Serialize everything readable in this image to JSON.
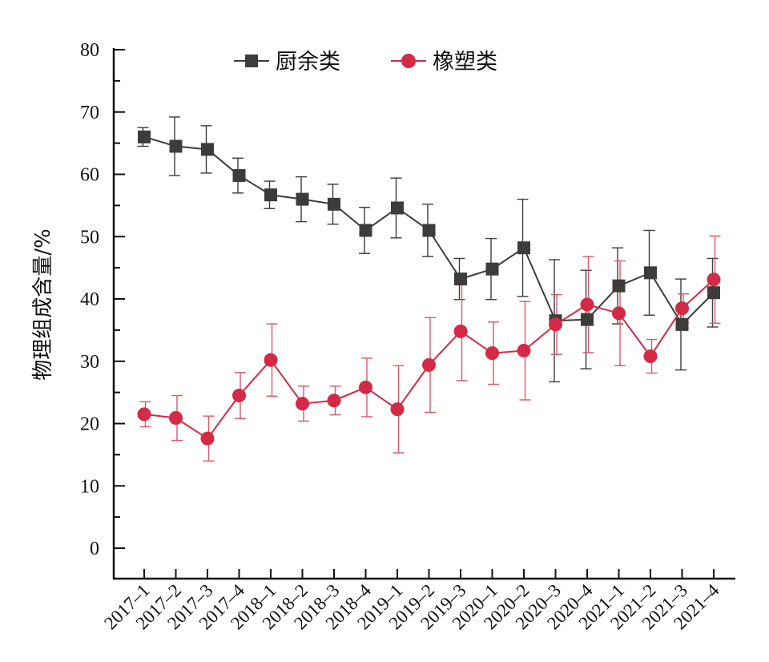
{
  "chart_data": {
    "type": "line",
    "title": "",
    "xlabel": "",
    "ylabel": "物理组成含量/%",
    "ylim": [
      0,
      80
    ],
    "yticks": [
      0,
      10,
      20,
      30,
      40,
      50,
      60,
      70,
      80
    ],
    "grid": false,
    "legend_position": "top-center",
    "categories": [
      "2017–1",
      "2017–2",
      "2017–3",
      "2017–4",
      "2018–1",
      "2018–2",
      "2018–3",
      "2018–4",
      "2019–1",
      "2019–2",
      "2019–3",
      "2020–1",
      "2020–2",
      "2020–3",
      "2020–4",
      "2021–1",
      "2021–2",
      "2021–3",
      "2021–4"
    ],
    "series": [
      {
        "name": "厨余类",
        "color": "#3c3c3c",
        "marker": "square",
        "values": [
          66.0,
          64.5,
          64.0,
          59.8,
          56.7,
          56.0,
          55.2,
          51.0,
          54.6,
          51.0,
          43.2,
          44.8,
          48.2,
          36.5,
          36.7,
          42.1,
          44.2,
          35.9,
          41.0
        ],
        "error": [
          1.5,
          4.7,
          3.8,
          2.8,
          2.2,
          3.6,
          3.2,
          3.7,
          4.8,
          4.2,
          3.3,
          4.9,
          7.8,
          9.8,
          7.9,
          6.1,
          6.8,
          7.3,
          5.5
        ]
      },
      {
        "name": "橡塑类",
        "color": "#d42a45",
        "marker": "circle",
        "values": [
          21.5,
          20.9,
          17.6,
          24.5,
          30.2,
          23.2,
          23.7,
          25.8,
          22.3,
          29.4,
          34.8,
          31.3,
          31.7,
          35.9,
          39.1,
          37.7,
          30.8,
          38.5,
          43.1
        ],
        "error": [
          2.0,
          3.6,
          3.6,
          3.7,
          5.8,
          2.8,
          2.3,
          4.7,
          7.0,
          7.6,
          7.9,
          5.0,
          7.9,
          4.8,
          7.7,
          8.4,
          2.7,
          2.3,
          7.0
        ]
      }
    ]
  }
}
